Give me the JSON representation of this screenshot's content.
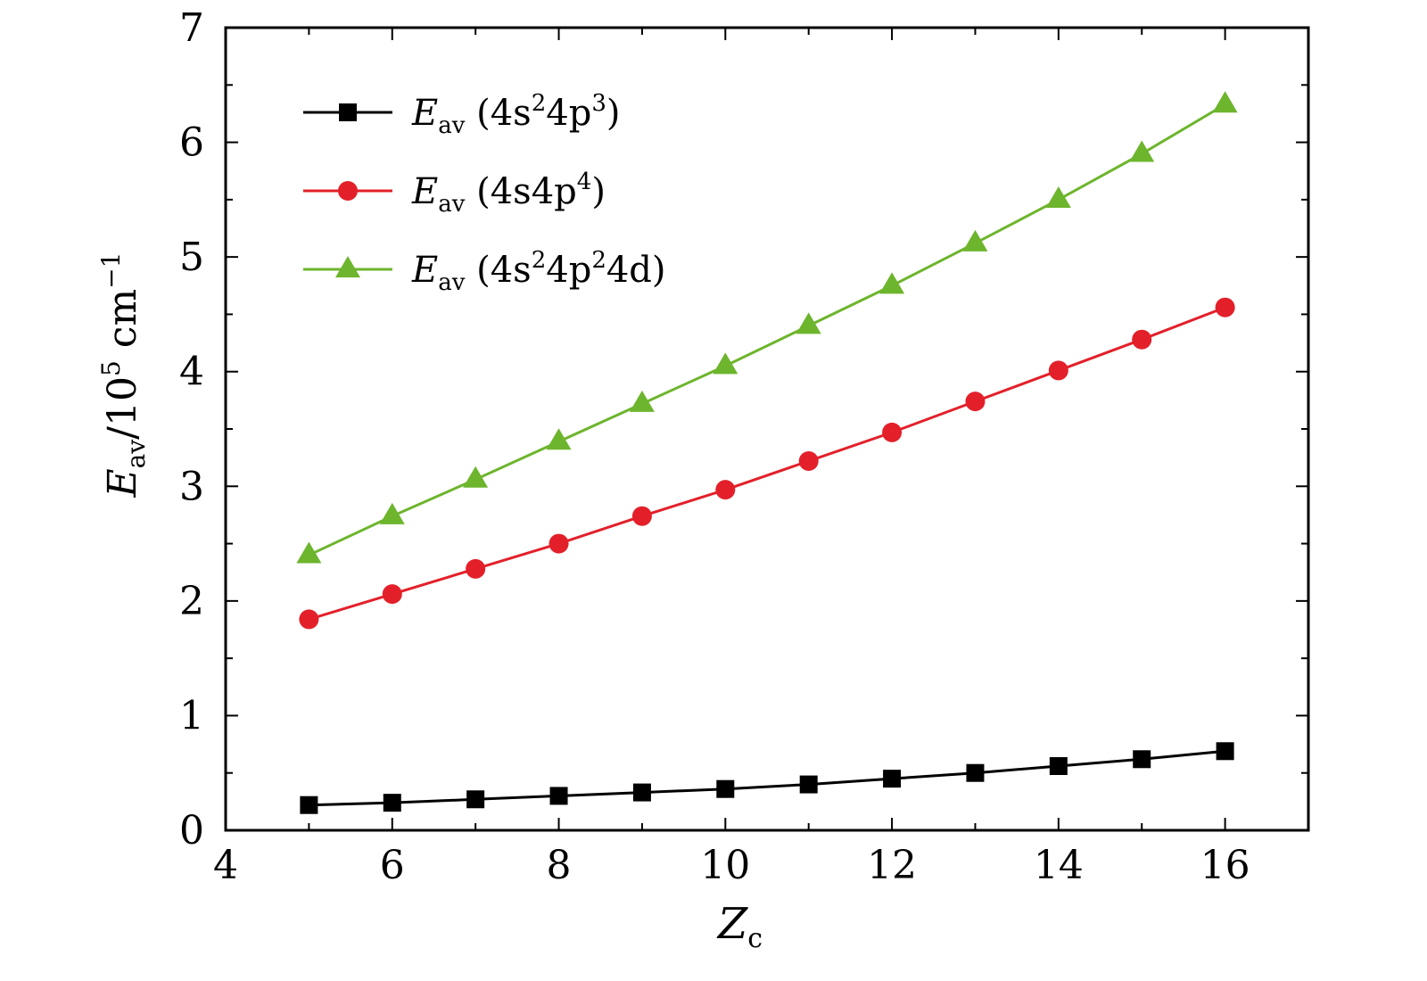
{
  "chart_data": {
    "type": "line",
    "xlabel": {
      "main": "Z",
      "sub": "c"
    },
    "ylabel": {
      "main": "E",
      "sub": "av",
      "rest": "/10",
      "sup": "5",
      "unit": " cm",
      "unit_sup": "−1"
    },
    "xlim": [
      4,
      17
    ],
    "ylim": [
      0,
      7
    ],
    "xticks": [
      4,
      6,
      8,
      10,
      12,
      14,
      16
    ],
    "yticks": [
      0,
      1,
      2,
      3,
      4,
      5,
      6,
      7
    ],
    "grid": false,
    "legend_position": "top-left",
    "x": [
      5,
      6,
      7,
      8,
      9,
      10,
      11,
      12,
      13,
      14,
      15,
      16
    ],
    "series": [
      {
        "name": "E_av (4s²4p³)",
        "label_parts": {
          "main": "E",
          "sub": "av",
          "text": " (4s",
          "s1": "2",
          "mid": "4p",
          "s2": "3",
          "end": ")"
        },
        "marker": "square",
        "color": "#000000",
        "values": [
          0.22,
          0.24,
          0.27,
          0.3,
          0.33,
          0.36,
          0.4,
          0.45,
          0.5,
          0.56,
          0.62,
          0.69
        ]
      },
      {
        "name": "E_av (4s4p⁴)",
        "label_parts": {
          "main": "E",
          "sub": "av",
          "text": " (4s4p",
          "s1": "4",
          "mid": "",
          "s2": "",
          "end": ")"
        },
        "marker": "circle",
        "color": "#e3202a",
        "values": [
          1.84,
          2.06,
          2.28,
          2.5,
          2.74,
          2.97,
          3.22,
          3.47,
          3.74,
          4.01,
          4.28,
          4.56
        ]
      },
      {
        "name": "E_av (4s²4p²4d)",
        "label_parts": {
          "main": "E",
          "sub": "av",
          "text": " (4s",
          "s1": "2",
          "mid": "4p",
          "s2": "2",
          "end": "4d)"
        },
        "marker": "triangle",
        "color": "#6db52d",
        "values": [
          2.4,
          2.74,
          3.06,
          3.39,
          3.72,
          4.05,
          4.4,
          4.75,
          5.12,
          5.5,
          5.9,
          6.33
        ]
      }
    ]
  }
}
